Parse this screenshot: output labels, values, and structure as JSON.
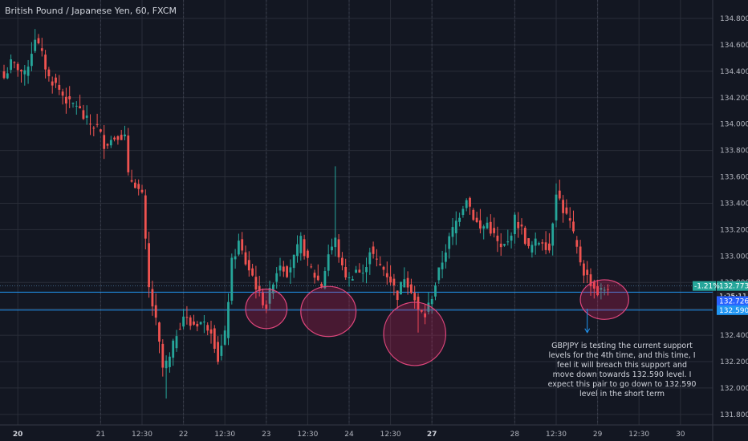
{
  "header": {
    "title": "British Pound / Japanese Yen, 60, FXCM"
  },
  "annotation": {
    "text": "GBPJPY is testing the current support levels for the 4th time, and this time, I feel it will breach this support and move down towards 132.590 level. I expect this pair to go down to 132.590 level in the short term"
  },
  "price_tags": [
    {
      "label": "-1.21%",
      "value": "132.773",
      "price": 132.773,
      "color": "#26a69a"
    },
    {
      "label": "",
      "value": "1:25:11",
      "price": 132.75,
      "color": "#1e222d"
    },
    {
      "label": "",
      "value": "132.726",
      "price": 132.726,
      "color": "#2962ff"
    },
    {
      "label": "",
      "value": "132.590",
      "price": 132.59,
      "color": "#2196f3"
    }
  ],
  "colors": {
    "background": "#131722",
    "grid": "#2a2e39",
    "up": "#26a69a",
    "down": "#ef5350",
    "support_line": "#2196f3",
    "circle_stroke": "#e0467c",
    "circle_fill": "rgba(233,30,99,0.25)"
  },
  "chart_data": {
    "type": "candlestick",
    "title": "British Pound / Japanese Yen, 60, FXCM",
    "symbol": "GBPJPY",
    "interval": "60",
    "ylim": [
      131.72,
      134.94
    ],
    "y_ticks": [
      "134.800",
      "134.600",
      "134.400",
      "134.200",
      "134.000",
      "133.800",
      "133.600",
      "133.400",
      "133.200",
      "133.000",
      "132.800",
      "132.600",
      "132.400",
      "132.200",
      "132.000",
      "131.800"
    ],
    "x_ticks": [
      {
        "label": "20",
        "bold": true,
        "idx": 4
      },
      {
        "label": "21",
        "bold": false,
        "idx": 28
      },
      {
        "label": "12:30",
        "bold": false,
        "idx": 40
      },
      {
        "label": "22",
        "bold": false,
        "idx": 52
      },
      {
        "label": "12:30",
        "bold": false,
        "idx": 64
      },
      {
        "label": "23",
        "bold": false,
        "idx": 76
      },
      {
        "label": "12:30",
        "bold": false,
        "idx": 88
      },
      {
        "label": "24",
        "bold": false,
        "idx": 100
      },
      {
        "label": "12:30",
        "bold": false,
        "idx": 112
      },
      {
        "label": "27",
        "bold": true,
        "idx": 124
      },
      {
        "label": "28",
        "bold": false,
        "idx": 148
      },
      {
        "label": "12:30",
        "bold": false,
        "idx": 160
      },
      {
        "label": "29",
        "bold": false,
        "idx": 172
      },
      {
        "label": "12:30",
        "bold": false,
        "idx": 184
      },
      {
        "label": "30",
        "bold": false,
        "idx": 196
      }
    ],
    "support_levels": [
      132.726,
      132.59
    ],
    "highlight_zones": [
      {
        "x_idx": 76,
        "price": 132.6,
        "rx_bars": 6,
        "ry_price": 0.15
      },
      {
        "x_idx": 94,
        "price": 132.58,
        "rx_bars": 8,
        "ry_price": 0.19
      },
      {
        "x_idx": 119,
        "price": 132.41,
        "rx_bars": 9,
        "ry_price": 0.24
      },
      {
        "x_idx": 174,
        "price": 132.67,
        "rx_bars": 7,
        "ry_price": 0.15
      }
    ],
    "projection": {
      "from_idx": 169,
      "from_price": 132.6,
      "to_price": 132.42
    },
    "keypoints": [
      [
        0,
        134.35
      ],
      [
        2,
        134.46
      ],
      [
        4,
        134.43
      ],
      [
        6,
        134.37
      ],
      [
        8,
        134.55
      ],
      [
        9,
        134.66
      ],
      [
        11,
        134.52
      ],
      [
        13,
        134.35
      ],
      [
        15,
        134.3
      ],
      [
        17,
        134.22
      ],
      [
        19,
        134.15
      ],
      [
        21,
        134.15
      ],
      [
        23,
        134.05
      ],
      [
        25,
        134.0
      ],
      [
        27,
        133.98
      ],
      [
        29,
        133.85
      ],
      [
        31,
        133.88
      ],
      [
        33,
        133.92
      ],
      [
        35,
        133.9
      ],
      [
        36,
        133.6
      ],
      [
        38,
        133.55
      ],
      [
        40,
        133.45
      ],
      [
        42,
        132.75
      ],
      [
        44,
        132.5
      ],
      [
        46,
        132.15
      ],
      [
        48,
        132.22
      ],
      [
        50,
        132.42
      ],
      [
        52,
        132.55
      ],
      [
        54,
        132.48
      ],
      [
        57,
        132.5
      ],
      [
        60,
        132.45
      ],
      [
        62,
        132.22
      ],
      [
        64,
        132.4
      ],
      [
        66,
        132.95
      ],
      [
        68,
        133.1
      ],
      [
        70,
        132.95
      ],
      [
        72,
        132.85
      ],
      [
        74,
        132.7
      ],
      [
        76,
        132.62
      ],
      [
        78,
        132.82
      ],
      [
        80,
        132.95
      ],
      [
        82,
        132.88
      ],
      [
        84,
        132.98
      ],
      [
        86,
        133.12
      ],
      [
        88,
        132.95
      ],
      [
        90,
        132.85
      ],
      [
        92,
        132.78
      ],
      [
        94,
        133.02
      ],
      [
        96,
        133.12
      ],
      [
        98,
        132.9
      ],
      [
        100,
        132.82
      ],
      [
        102,
        132.9
      ],
      [
        104,
        132.85
      ],
      [
        106,
        133.05
      ],
      [
        108,
        132.95
      ],
      [
        110,
        132.9
      ],
      [
        112,
        132.82
      ],
      [
        114,
        132.7
      ],
      [
        116,
        132.85
      ],
      [
        118,
        132.75
      ],
      [
        120,
        132.58
      ],
      [
        122,
        132.55
      ],
      [
        124,
        132.7
      ],
      [
        126,
        132.88
      ],
      [
        128,
        133.05
      ],
      [
        130,
        133.2
      ],
      [
        132,
        133.32
      ],
      [
        134,
        133.45
      ],
      [
        136,
        133.3
      ],
      [
        138,
        133.2
      ],
      [
        140,
        133.25
      ],
      [
        142,
        133.15
      ],
      [
        144,
        133.05
      ],
      [
        146,
        133.1
      ],
      [
        148,
        133.28
      ],
      [
        150,
        133.2
      ],
      [
        152,
        133.05
      ],
      [
        154,
        133.1
      ],
      [
        156,
        133.12
      ],
      [
        158,
        133.05
      ],
      [
        160,
        133.5
      ],
      [
        162,
        133.35
      ],
      [
        164,
        133.25
      ],
      [
        166,
        133.05
      ],
      [
        168,
        132.88
      ],
      [
        170,
        132.8
      ],
      [
        172,
        132.72
      ],
      [
        174,
        132.75
      ],
      [
        175,
        132.77
      ]
    ],
    "extremes": [
      {
        "idx": 9,
        "high": 134.72
      },
      {
        "idx": 47,
        "low": 131.92
      },
      {
        "idx": 96,
        "high": 133.68
      },
      {
        "idx": 120,
        "low": 132.42
      },
      {
        "idx": 160,
        "high": 133.55
      }
    ]
  }
}
